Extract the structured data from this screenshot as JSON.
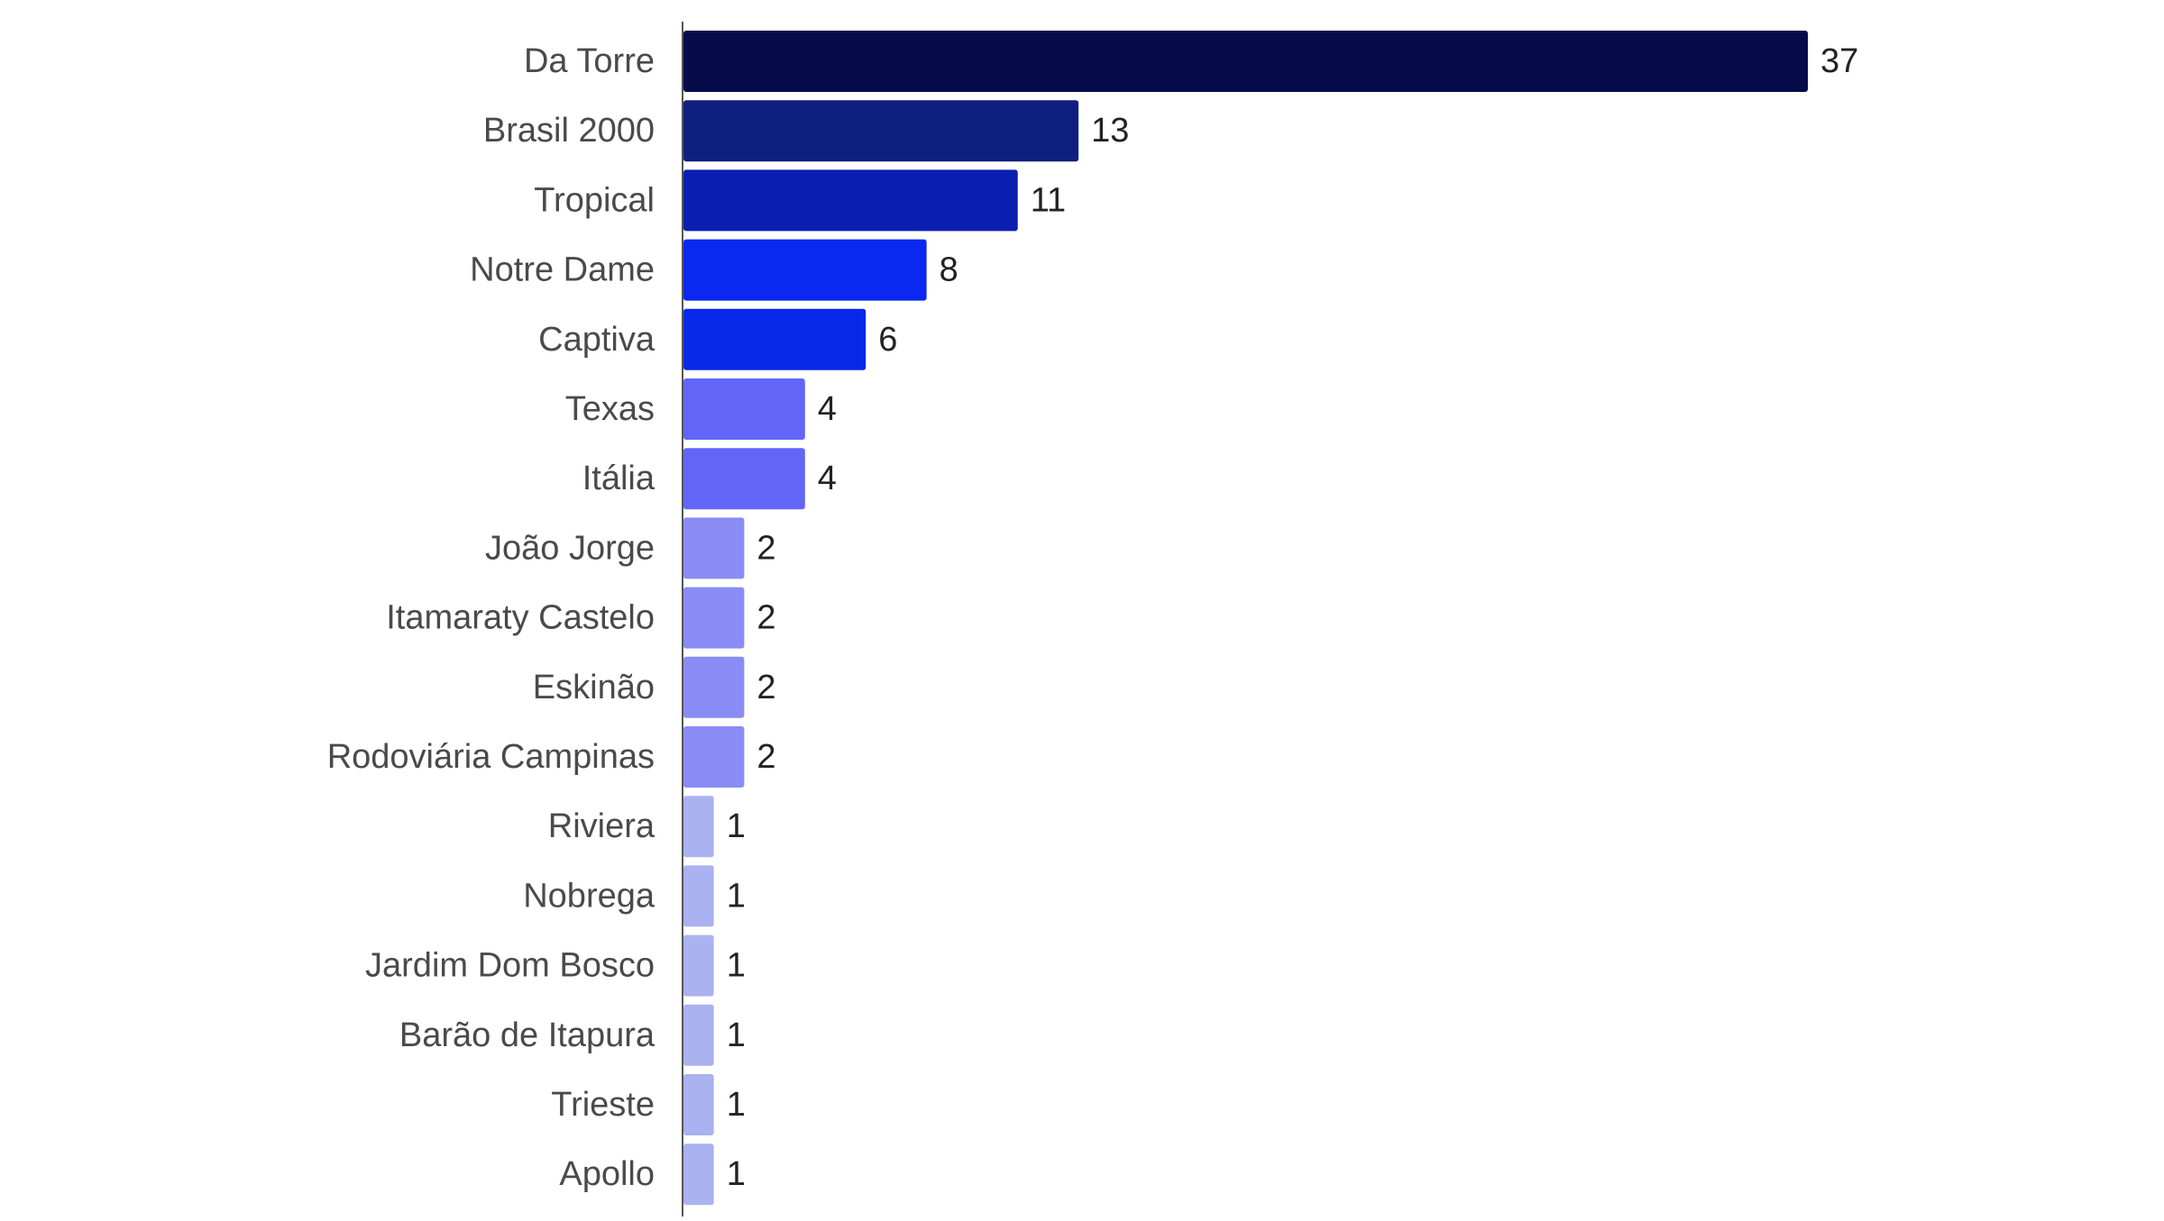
{
  "chart_data": {
    "type": "bar",
    "orientation": "horizontal",
    "title": "",
    "xlabel": "",
    "ylabel": "",
    "categories": [
      "Da Torre",
      "Brasil 2000",
      "Tropical",
      "Notre Dame",
      "Captiva",
      "Texas",
      "Itália",
      "João Jorge",
      "Itamaraty Castelo",
      "Eskinão",
      "Rodoviária Campinas",
      "Riviera",
      "Nobrega",
      "Jardim Dom Bosco",
      "Barão de Itapura",
      "Trieste",
      "Apollo"
    ],
    "values": [
      37,
      13,
      11,
      8,
      6,
      4,
      4,
      2,
      2,
      2,
      2,
      1,
      1,
      1,
      1,
      1,
      1
    ],
    "bar_colors": [
      "#070b4a",
      "#0f1f80",
      "#0a1fb0",
      "#0a28f0",
      "#0a28ea",
      "#6166f8",
      "#6166f8",
      "#8a8cf5",
      "#8a8cf5",
      "#8a8cf5",
      "#8a8cf5",
      "#aab2f0",
      "#aab2f0",
      "#aab2f0",
      "#aab2f0",
      "#aab2f0",
      "#aab2f0"
    ],
    "xlim": [
      0,
      37
    ],
    "grid": false,
    "legend": "none",
    "data_labels": true
  }
}
